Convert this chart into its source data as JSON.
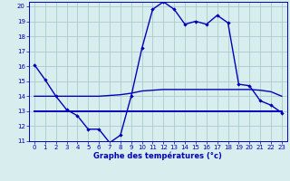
{
  "line1_x": [
    0,
    1,
    2,
    3,
    4,
    5,
    6,
    7,
    8,
    9,
    10,
    11,
    12,
    13,
    14,
    15,
    16,
    17,
    18,
    19,
    20,
    21,
    22,
    23
  ],
  "line1_y": [
    16.1,
    15.1,
    14.0,
    13.1,
    12.7,
    11.8,
    11.8,
    10.9,
    11.4,
    14.0,
    17.2,
    19.8,
    20.3,
    19.8,
    18.8,
    19.0,
    18.8,
    19.4,
    18.9,
    14.8,
    14.7,
    13.7,
    13.4,
    12.9
  ],
  "line2_x": [
    0,
    1,
    2,
    3,
    4,
    5,
    6,
    7,
    8,
    9,
    10,
    11,
    12,
    13,
    14,
    15,
    16,
    17,
    18,
    19,
    20,
    21,
    22,
    23
  ],
  "line2_y": [
    14.0,
    14.0,
    14.0,
    14.0,
    14.0,
    14.0,
    14.0,
    14.05,
    14.1,
    14.2,
    14.35,
    14.4,
    14.45,
    14.45,
    14.45,
    14.45,
    14.45,
    14.45,
    14.45,
    14.45,
    14.45,
    14.4,
    14.3,
    14.0
  ],
  "line3_x": [
    0,
    3,
    23
  ],
  "line3_y": [
    13.0,
    13.0,
    13.0
  ],
  "line_color": "#0000bb",
  "bg_color": "#d8eeee",
  "grid_color": "#aacccc",
  "xlabel": "Graphe des températures (°c)",
  "xlim": [
    -0.5,
    23.5
  ],
  "ylim": [
    11,
    20.3
  ],
  "yticks": [
    11,
    12,
    13,
    14,
    15,
    16,
    17,
    18,
    19,
    20
  ],
  "xticks": [
    0,
    1,
    2,
    3,
    4,
    5,
    6,
    7,
    8,
    9,
    10,
    11,
    12,
    13,
    14,
    15,
    16,
    17,
    18,
    19,
    20,
    21,
    22,
    23
  ]
}
